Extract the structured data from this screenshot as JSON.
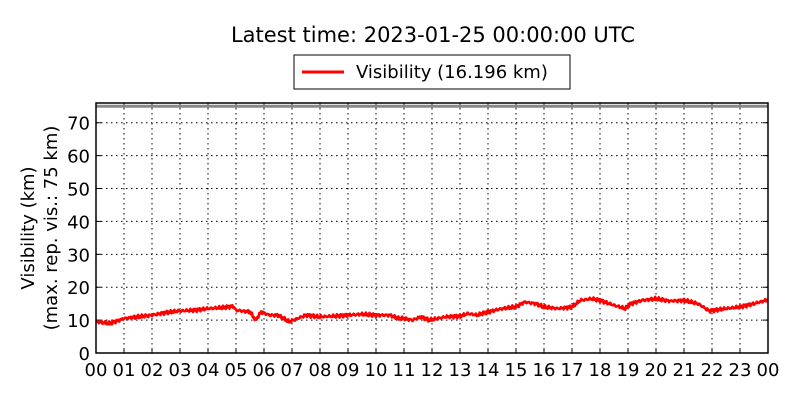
{
  "chart_data": {
    "type": "line",
    "title": "Latest time: 2023-01-25 00:00:00 UTC",
    "ylabel_line1": "Visibility (km)",
    "ylabel_line2": "(max. rep. vis.: 75 km)",
    "xlabel": "",
    "xlim": [
      0,
      24
    ],
    "ylim": [
      0,
      76
    ],
    "max_reported_line": 75,
    "grid": true,
    "legend_placement": "top-center-outside",
    "xticks": [
      0,
      1,
      2,
      3,
      4,
      5,
      6,
      7,
      8,
      9,
      10,
      11,
      12,
      13,
      14,
      15,
      16,
      17,
      18,
      19,
      20,
      21,
      22,
      23,
      24
    ],
    "xtick_labels": [
      "00",
      "01",
      "02",
      "03",
      "04",
      "05",
      "06",
      "07",
      "08",
      "09",
      "10",
      "11",
      "12",
      "13",
      "14",
      "15",
      "16",
      "17",
      "18",
      "19",
      "20",
      "21",
      "22",
      "23",
      "00"
    ],
    "yticks": [
      0,
      10,
      20,
      30,
      40,
      50,
      60,
      70
    ],
    "ytick_labels": [
      "0",
      "10",
      "20",
      "30",
      "40",
      "50",
      "60",
      "70"
    ],
    "series": [
      {
        "name": "Visibility (16.196 km)",
        "color": "#ff0000",
        "x": [
          0,
          0.5,
          1,
          1.5,
          2,
          2.5,
          3,
          3.5,
          4,
          4.5,
          4.9,
          5.0,
          5.5,
          5.7,
          5.9,
          6.2,
          6.5,
          6.9,
          7.2,
          7.5,
          8,
          8.5,
          9,
          9.5,
          10,
          10.5,
          10.8,
          11,
          11.3,
          11.6,
          11.9,
          12.5,
          13,
          13.3,
          13.6,
          14,
          14.5,
          15,
          15.3,
          15.7,
          16,
          16.5,
          17,
          17.3,
          17.7,
          18,
          18.5,
          18.9,
          19.1,
          19.5,
          20,
          20.5,
          21,
          21.5,
          21.9,
          22.5,
          23,
          23.5,
          24
        ],
        "y": [
          9.5,
          9,
          10.5,
          11,
          11.5,
          12.3,
          12.8,
          13,
          13.5,
          13.8,
          14.2,
          13,
          12.5,
          10,
          12.5,
          11.5,
          11.5,
          9.5,
          10.5,
          11.5,
          11,
          11.2,
          11.5,
          11.8,
          11.5,
          11.5,
          10.5,
          10.5,
          10,
          11,
          10,
          11,
          11.2,
          12,
          11.5,
          12.5,
          13.5,
          14,
          15.5,
          15,
          14,
          13.5,
          14,
          16,
          16.5,
          16,
          14.5,
          13.5,
          15,
          16,
          16.5,
          15.8,
          16,
          15,
          12.8,
          13.5,
          14,
          15,
          16.2
        ]
      }
    ]
  }
}
